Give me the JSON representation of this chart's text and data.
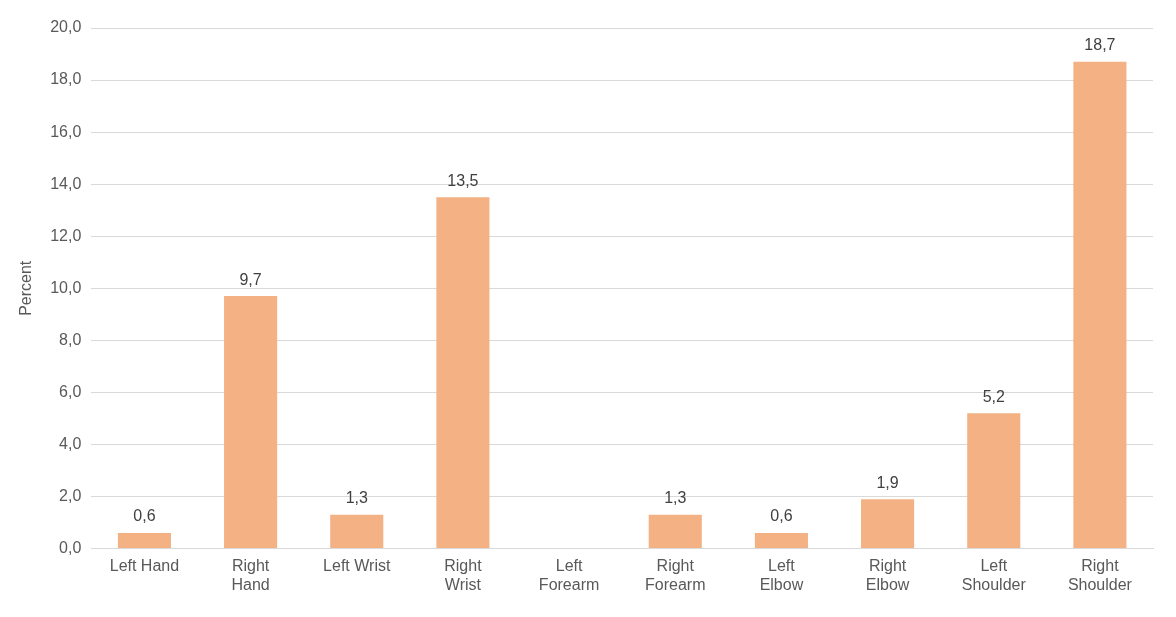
{
  "chart_data": {
    "type": "bar",
    "ylabel": "Percent",
    "categories": [
      "Left Hand",
      "Right Hand",
      "Left Wrist",
      "Right Wrist",
      "Left Forearm",
      "Right Forearm",
      "Left Elbow",
      "Right Elbow",
      "Left Shoulder",
      "Right Shoulder"
    ],
    "values": [
      0.6,
      9.7,
      1.3,
      13.5,
      null,
      1.3,
      0.6,
      1.9,
      5.2,
      18.7
    ],
    "value_labels": [
      "0,6",
      "9,7",
      "1,3",
      "13,5",
      null,
      "1,3",
      "0,6",
      "1,9",
      "5,2",
      "18,7"
    ],
    "color": "#f4b183",
    "ylim": [
      0,
      20
    ],
    "yticks": [
      {
        "value": 0,
        "label": "0,0"
      },
      {
        "value": 2,
        "label": "2,0"
      },
      {
        "value": 4,
        "label": "4,0"
      },
      {
        "value": 6,
        "label": "6,0"
      },
      {
        "value": 8,
        "label": "8,0"
      },
      {
        "value": 10,
        "label": "10,0"
      },
      {
        "value": 12,
        "label": "12,0"
      },
      {
        "value": 14,
        "label": "14,0"
      },
      {
        "value": 16,
        "label": "16,0"
      },
      {
        "value": 18,
        "label": "18,0"
      },
      {
        "value": 20,
        "label": "20,0"
      }
    ],
    "grid": "y",
    "legend": false
  }
}
